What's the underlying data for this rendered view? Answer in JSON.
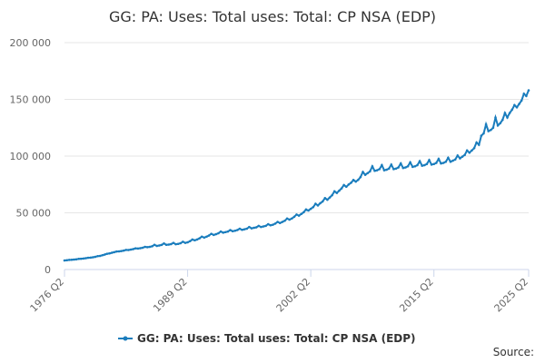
{
  "chart_data": {
    "type": "line",
    "title": "GG: PA: Uses: Total uses: Total: CP NSA (EDP)",
    "source": "Source:",
    "categories": [
      "1976 Q2",
      null,
      null,
      null,
      null,
      null,
      null,
      null,
      null,
      null,
      null,
      null,
      null,
      null,
      null,
      null,
      null,
      null,
      null,
      null,
      null,
      null,
      null,
      null,
      null,
      null,
      null,
      null,
      null,
      null,
      null,
      null,
      null,
      null,
      null,
      null,
      null,
      null,
      null,
      null,
      null,
      null,
      null,
      null,
      null,
      null,
      null,
      null,
      null,
      null,
      null,
      null,
      "1989 Q2",
      null,
      null,
      null,
      null,
      null,
      null,
      null,
      null,
      null,
      null,
      null,
      null,
      null,
      null,
      null,
      null,
      null,
      null,
      null,
      null,
      null,
      null,
      null,
      null,
      null,
      null,
      null,
      null,
      null,
      null,
      null,
      null,
      null,
      null,
      null,
      null,
      null,
      null,
      null,
      null,
      null,
      null,
      null,
      null,
      null,
      null,
      null,
      null,
      null,
      null,
      null,
      "2002 Q2",
      null,
      null,
      null,
      null,
      null,
      null,
      null,
      null,
      null,
      null,
      null,
      null,
      null,
      null,
      null,
      null,
      null,
      null,
      null,
      null,
      null,
      null,
      null,
      null,
      null,
      null,
      null,
      null,
      null,
      null,
      null,
      null,
      null,
      null,
      null,
      null,
      null,
      null,
      null,
      null,
      null,
      null,
      null,
      null,
      null,
      null,
      null,
      null,
      null,
      null,
      null,
      "2015 Q2",
      null,
      null,
      null,
      null,
      null,
      null,
      null,
      null,
      null,
      null,
      null,
      null,
      null,
      null,
      null,
      null,
      null,
      null,
      null,
      null,
      null,
      null,
      null,
      null,
      null,
      null,
      null,
      null,
      null,
      null,
      null,
      null,
      null,
      null,
      null,
      null,
      null,
      null,
      null,
      "2025 Q2"
    ],
    "series": [
      {
        "name": "GG: PA: Uses: Total uses: Total: CP NSA (EDP)",
        "color": "#1a7dbd",
        "values": [
          8000,
          8200,
          8500,
          8600,
          8800,
          9000,
          9400,
          9500,
          9700,
          10000,
          10400,
          10500,
          10800,
          11200,
          11800,
          12000,
          12600,
          13200,
          13900,
          14200,
          14800,
          15300,
          15900,
          16000,
          16300,
          16700,
          17300,
          17200,
          17600,
          18000,
          18700,
          18500,
          18800,
          19200,
          20000,
          19700,
          20000,
          20500,
          21800,
          20800,
          21200,
          21700,
          23000,
          21800,
          22000,
          22400,
          23500,
          22300,
          22600,
          23200,
          24500,
          23500,
          24000,
          25000,
          26500,
          25800,
          26500,
          27500,
          29000,
          28200,
          29000,
          30000,
          31500,
          30500,
          31200,
          32000,
          33500,
          32500,
          33000,
          33500,
          34800,
          33800,
          34200,
          34800,
          36000,
          35000,
          35500,
          36000,
          37500,
          36300,
          36800,
          37200,
          38500,
          37500,
          38000,
          38500,
          40000,
          39000,
          39500,
          40500,
          42000,
          41000,
          42000,
          43000,
          45000,
          44000,
          45000,
          46500,
          48500,
          47500,
          49000,
          50500,
          53000,
          52000,
          53500,
          55000,
          58000,
          56500,
          58500,
          60000,
          63000,
          61500,
          63500,
          65500,
          69000,
          67500,
          69500,
          71500,
          74500,
          73000,
          75000,
          76500,
          79000,
          77500,
          79000,
          81500,
          86000,
          83500,
          85000,
          86500,
          91000,
          87000,
          87500,
          88500,
          92000,
          87500,
          88000,
          89000,
          92500,
          88500,
          89000,
          90000,
          93500,
          89500,
          90000,
          91000,
          94500,
          90500,
          91000,
          92000,
          95500,
          91500,
          92000,
          93000,
          96500,
          92500,
          93000,
          94000,
          97500,
          93500,
          94000,
          95000,
          98500,
          95000,
          96000,
          97000,
          100500,
          98000,
          99500,
          101000,
          105000,
          103000,
          105000,
          107000,
          112000,
          110000,
          118000,
          120000,
          128000,
          122000,
          123000,
          125000,
          134000,
          127000,
          129000,
          132000,
          138000,
          134000,
          138000,
          141000,
          145000,
          143000,
          146000,
          149000,
          155000,
          153000,
          158000
        ]
      }
    ],
    "ylim": [
      0,
      200000
    ],
    "yticks": [
      0,
      {
        "value": 50000,
        "label": "50 000"
      },
      {
        "value": 100000,
        "label": "100 000"
      },
      {
        "value": 150000,
        "label": "150 000"
      },
      {
        "value": 200000,
        "label": "200 000"
      }
    ],
    "grid": true,
    "legend": "bottom"
  }
}
